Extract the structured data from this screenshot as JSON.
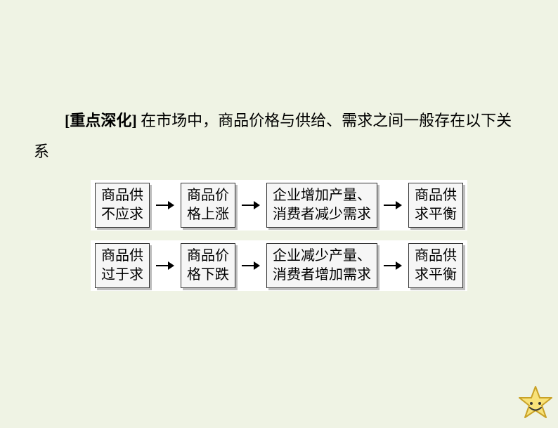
{
  "intro": {
    "bold": "[重点深化]",
    "rest": " 在市场中，商品价格与供给、需求之间一般存在以下关系"
  },
  "flows": [
    {
      "nodes": [
        "商品供\n不应求",
        "商品价\n格上涨",
        "企业增加产量、\n消费者减少需求",
        "商品供\n求平衡"
      ]
    },
    {
      "nodes": [
        "商品供\n过于求",
        "商品价\n格下跌",
        "企业减少产量、\n消费者增加需求",
        "商品供\n求平衡"
      ]
    }
  ],
  "style": {
    "background": "#eff3e4",
    "node_bg": "#f6f6f6",
    "node_border": "#333333",
    "node_shadow": "#bdbdbd",
    "row_bg": "#ffffff",
    "text_color": "#000000",
    "arrow_color": "#000000",
    "node_fontsize": 20,
    "intro_fontsize": 22,
    "star_fill": "#f8e27a",
    "star_stroke": "#c9a227"
  }
}
